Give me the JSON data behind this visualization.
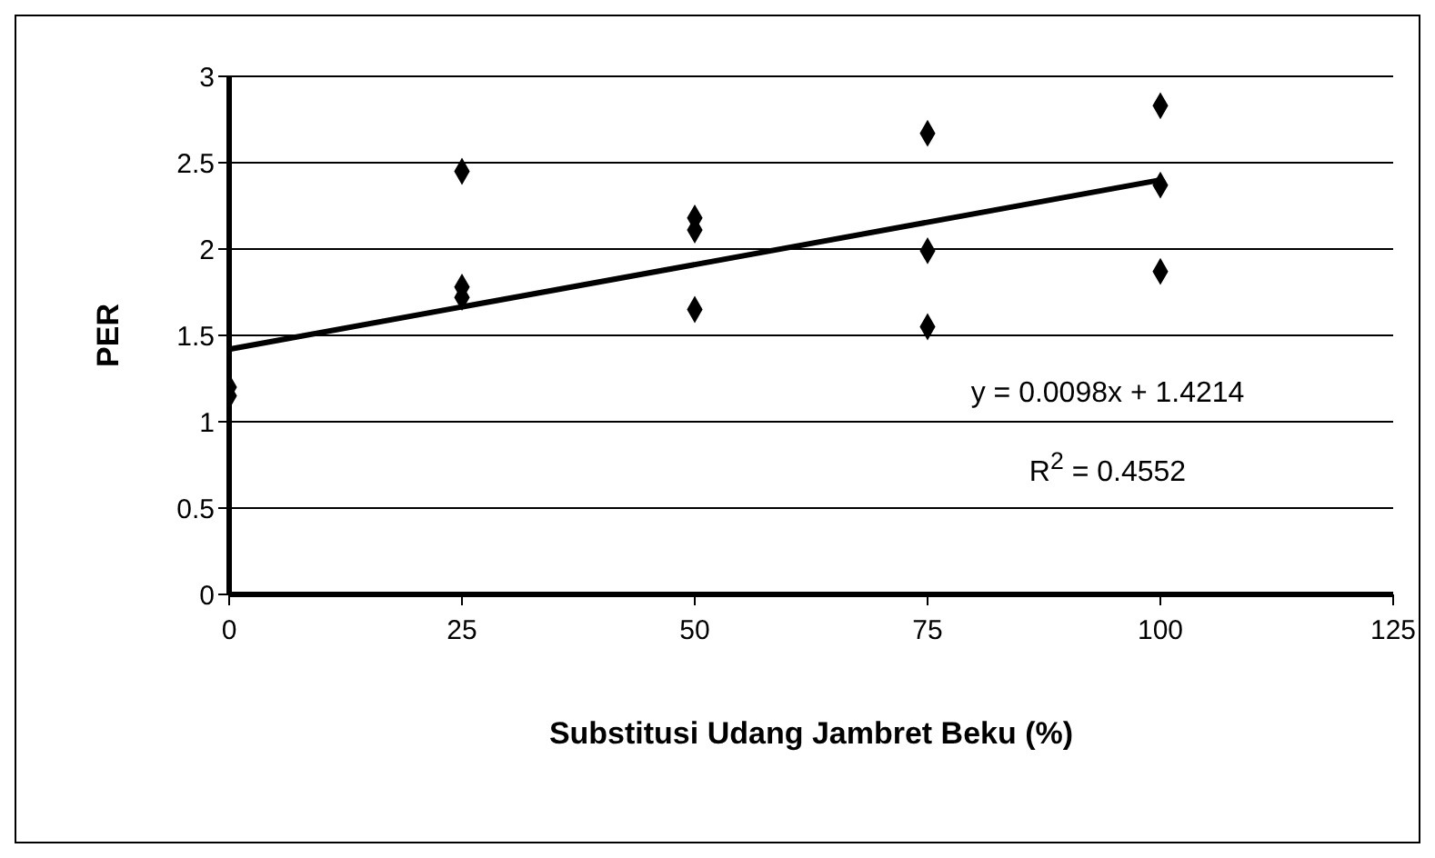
{
  "chart_data": {
    "type": "scatter",
    "xlabel": "Substitusi Udang Jambret Beku (%)",
    "ylabel": "PER",
    "xlim": [
      0,
      125
    ],
    "xticks": [
      0,
      25,
      50,
      75,
      100,
      125
    ],
    "ylim": [
      0,
      3
    ],
    "yticks": [
      0,
      0.5,
      1,
      1.5,
      2,
      2.5,
      3
    ],
    "grid": "y",
    "marker": "diamond",
    "series": [
      {
        "color": "#000000",
        "x": [
          0,
          0,
          25,
          25,
          25,
          50,
          50,
          50,
          75,
          75,
          75,
          100,
          100,
          100
        ],
        "values": [
          1.2,
          1.15,
          2.45,
          1.78,
          1.72,
          2.18,
          2.11,
          1.65,
          2.67,
          1.99,
          1.55,
          2.83,
          2.37,
          1.87
        ]
      },
      {
        "type": "line",
        "color": "#000000",
        "marker": "none",
        "x": [
          0,
          100
        ],
        "values": [
          1.42,
          2.4
        ]
      }
    ],
    "annotations": [
      "y = 0.0098x + 1.4214",
      "R$^{2}$ = 0.4552"
    ]
  }
}
